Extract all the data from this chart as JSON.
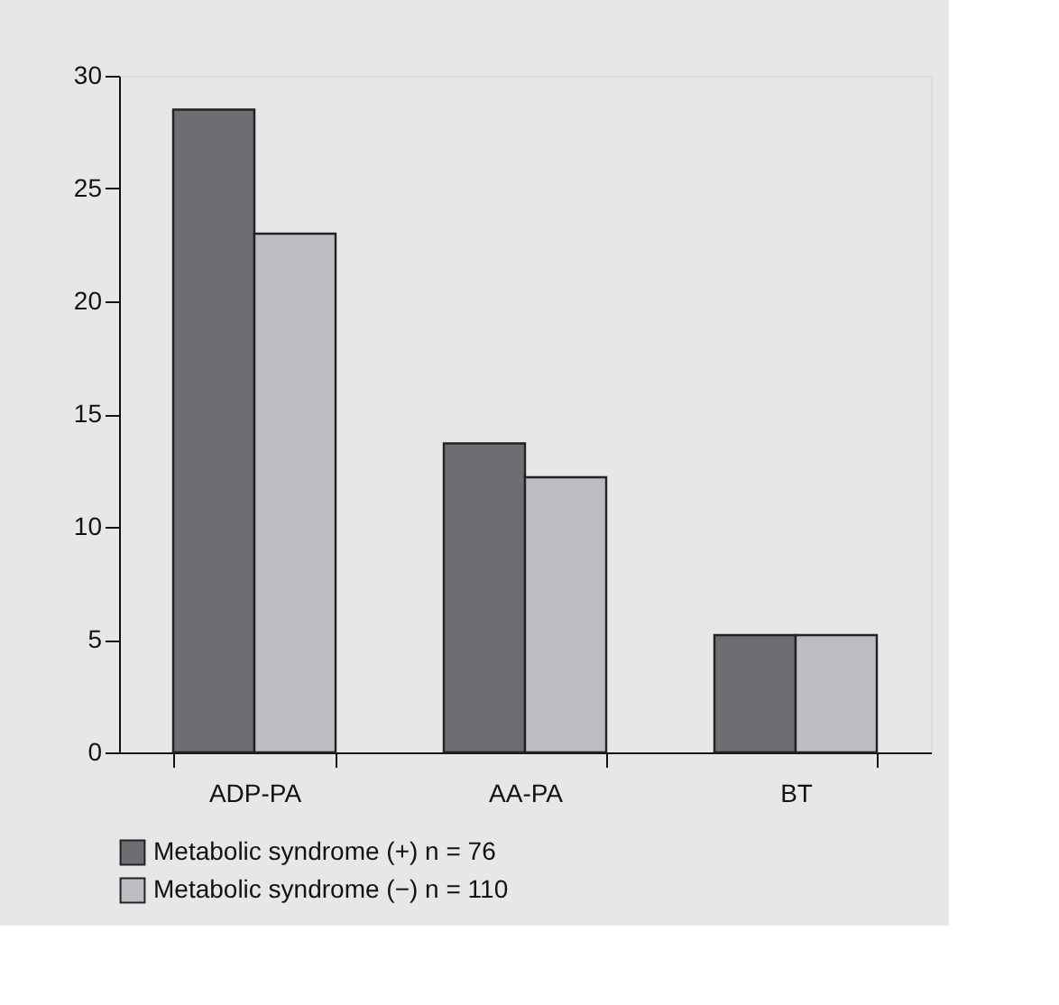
{
  "chart_data": {
    "type": "bar",
    "categories": [
      "ADP-PA",
      "AA-PA",
      "BT"
    ],
    "series": [
      {
        "name": "Metabolic syndrome (+) n = 76",
        "color": "#6d6e71",
        "values": [
          28.5,
          13.7,
          5.2
        ]
      },
      {
        "name": "Metabolic syndrome (−) n = 110",
        "color": "#bcbdc0",
        "values": [
          23.0,
          12.2,
          5.2
        ]
      }
    ],
    "ylim": [
      0,
      30
    ],
    "yticks": [
      0,
      5,
      10,
      15,
      20,
      25,
      30
    ],
    "grid": false,
    "legend": "bottom left"
  }
}
